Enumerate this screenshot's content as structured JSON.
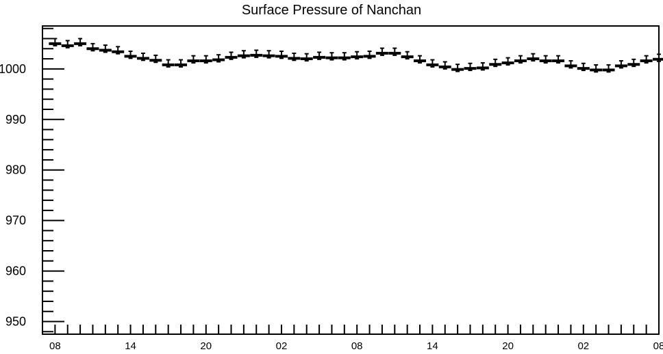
{
  "chart_data": {
    "type": "scatter",
    "title": "Surface Pressure of Nanchan",
    "xlabel": "",
    "ylabel": "",
    "ylim": [
      947.5,
      1008.5
    ],
    "xlim": [
      -1,
      48
    ],
    "y_ticks": [
      950,
      960,
      970,
      980,
      990,
      1000
    ],
    "y_tick_labels": [
      "950",
      "960",
      "970",
      "980",
      "990",
      "1000"
    ],
    "x_tick_positions": [
      0,
      6,
      12,
      18,
      24,
      30,
      36,
      42,
      48
    ],
    "x_tick_labels": [
      "08",
      "14",
      "20",
      "02",
      "08",
      "14",
      "20",
      "02",
      "08"
    ],
    "error_bar_up": 1.0,
    "error_bar_down": 0.4,
    "grid": false,
    "legend": "none",
    "x": [
      0,
      1,
      2,
      3,
      4,
      5,
      6,
      7,
      8,
      9,
      10,
      11,
      12,
      13,
      14,
      15,
      16,
      17,
      18,
      19,
      20,
      21,
      22,
      23,
      24,
      25,
      26,
      27,
      28,
      29,
      30,
      31,
      32,
      33,
      34,
      35,
      36,
      37,
      38,
      39,
      40,
      41,
      42,
      43,
      44,
      45,
      46,
      47,
      48
    ],
    "values": [
      1005.0,
      1004.6,
      1005.0,
      1004.0,
      1003.7,
      1003.4,
      1002.5,
      1002.1,
      1001.7,
      1000.8,
      1000.8,
      1001.6,
      1001.6,
      1001.8,
      1002.3,
      1002.6,
      1002.7,
      1002.6,
      1002.5,
      1002.1,
      1002.0,
      1002.3,
      1002.2,
      1002.2,
      1002.4,
      1002.5,
      1003.1,
      1003.1,
      1002.4,
      1001.6,
      1000.8,
      1000.4,
      999.9,
      1000.1,
      1000.2,
      1000.9,
      1001.2,
      1001.6,
      1002.0,
      1001.6,
      1001.6,
      1000.6,
      1000.1,
      999.8,
      999.8,
      1000.6,
      1000.9,
      1001.6,
      1001.9
    ]
  }
}
